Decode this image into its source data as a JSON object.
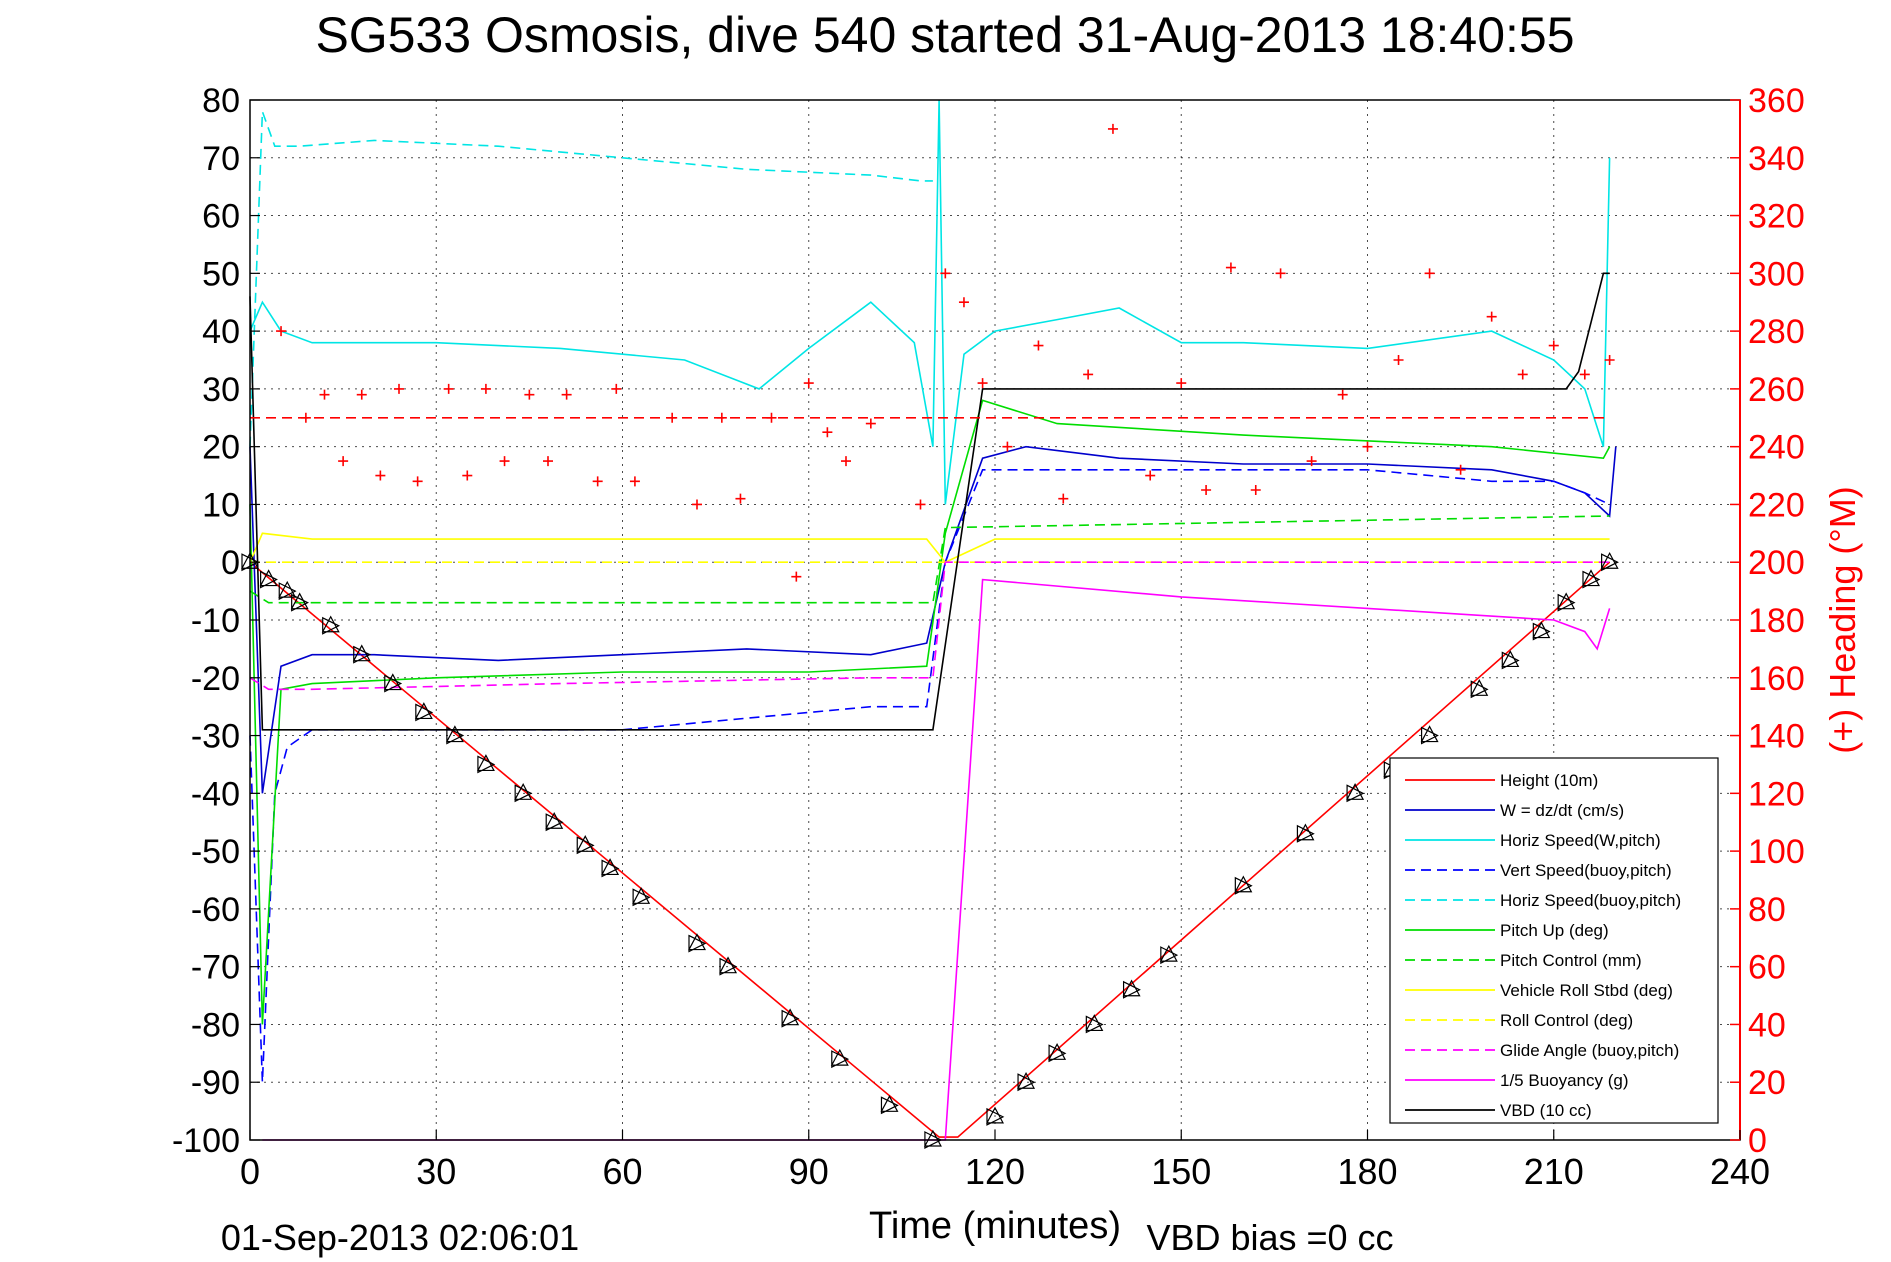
{
  "chart_data": {
    "type": "line",
    "title": "SG533 Osmosis, dive 540 started 31-Aug-2013 18:40:55",
    "xlabel": "Time (minutes)",
    "ylabel_right": "(+) Heading (°M)",
    "footer_left": "01-Sep-2013 02:06:01",
    "footer_right": "VBD bias =0 cc",
    "xlim": [
      0,
      240
    ],
    "ylim": [
      -100,
      80
    ],
    "y2lim": [
      0,
      360
    ],
    "x_ticks": [
      "0",
      "30",
      "60",
      "90",
      "120",
      "150",
      "180",
      "210",
      "240"
    ],
    "y_ticks": [
      "80",
      "70",
      "60",
      "50",
      "40",
      "30",
      "20",
      "10",
      "0",
      "-10",
      "-20",
      "-30",
      "-40",
      "-50",
      "-60",
      "-70",
      "-80",
      "-90",
      "-100"
    ],
    "y2_ticks": [
      "360",
      "340",
      "320",
      "300",
      "280",
      "260",
      "240",
      "220",
      "200",
      "180",
      "160",
      "140",
      "120",
      "100",
      "80",
      "60",
      "40",
      "20",
      "0"
    ],
    "grid": true,
    "legend_position": "bottom-right",
    "legend": [
      {
        "label": "Height (10m)",
        "color": "#ff0000",
        "dash": "solid"
      },
      {
        "label": "W = dz/dt (cm/s)",
        "color": "#0000cc",
        "dash": "solid"
      },
      {
        "label": "Horiz Speed(W,pitch)",
        "color": "#00e5e5",
        "dash": "solid"
      },
      {
        "label": "Vert Speed(buoy,pitch)",
        "color": "#0000ff",
        "dash": "dashed"
      },
      {
        "label": "Horiz Speed(buoy,pitch)",
        "color": "#00e5e5",
        "dash": "dashed"
      },
      {
        "label": "Pitch Up (deg)",
        "color": "#00dd00",
        "dash": "solid"
      },
      {
        "label": "Pitch Control (mm)",
        "color": "#00dd00",
        "dash": "dashed"
      },
      {
        "label": "Vehicle Roll Stbd (deg)",
        "color": "#ffff00",
        "dash": "solid"
      },
      {
        "label": "Roll Control (deg)",
        "color": "#ffff00",
        "dash": "dashed"
      },
      {
        "label": "Glide Angle (buoy,pitch)",
        "color": "#ff00ff",
        "dash": "dashed"
      },
      {
        "label": "1/5 Buoyancy (g)",
        "color": "#ff00ff",
        "dash": "solid"
      },
      {
        "label": "VBD (10 cc)",
        "color": "#000000",
        "dash": "solid"
      }
    ],
    "series": [
      {
        "name": "Height (10m)",
        "axis": "left",
        "color": "#ff0000",
        "dash": "solid",
        "x": [
          0,
          111,
          114,
          219
        ],
        "y": [
          0,
          -99.5,
          -99.5,
          0
        ]
      },
      {
        "name": "W = dz/dt (cm/s)",
        "axis": "left",
        "color": "#0000cc",
        "dash": "solid",
        "x": [
          0,
          2,
          5,
          10,
          20,
          40,
          60,
          80,
          100,
          109,
          112,
          118,
          125,
          140,
          160,
          180,
          200,
          210,
          215,
          219,
          220
        ],
        "y": [
          20,
          -40,
          -18,
          -16,
          -16,
          -17,
          -16,
          -15,
          -16,
          -14,
          0,
          18,
          20,
          18,
          17,
          17,
          16,
          14,
          12,
          8,
          20
        ]
      },
      {
        "name": "Horiz Speed(W,pitch)",
        "axis": "left",
        "color": "#00e5e5",
        "dash": "solid",
        "x": [
          0,
          2,
          5,
          10,
          30,
          50,
          70,
          82,
          90,
          100,
          107,
          110,
          111,
          112,
          115,
          120,
          130,
          140,
          150,
          160,
          180,
          200,
          210,
          215,
          218,
          219
        ],
        "y": [
          40,
          45,
          40,
          38,
          38,
          37,
          35,
          30,
          37,
          45,
          38,
          20,
          80,
          10,
          36,
          40,
          42,
          44,
          38,
          38,
          37,
          40,
          35,
          30,
          20,
          70
        ]
      },
      {
        "name": "Vert Speed(buoy,pitch)",
        "axis": "left",
        "color": "#0000ff",
        "dash": "dashed",
        "x": [
          0,
          2,
          4,
          6,
          10,
          20,
          40,
          60,
          80,
          100,
          109,
          112,
          118,
          140,
          160,
          180,
          200,
          210,
          215,
          219
        ],
        "y": [
          -30,
          -90,
          -40,
          -32,
          -29,
          -29,
          -29,
          -29,
          -27,
          -25,
          -25,
          0,
          16,
          16,
          16,
          16,
          14,
          14,
          12,
          10
        ]
      },
      {
        "name": "Horiz Speed(buoy,pitch)",
        "axis": "left",
        "color": "#00e5e5",
        "dash": "dashed",
        "x": [
          0,
          2,
          4,
          8,
          20,
          40,
          60,
          80,
          100,
          108,
          110
        ],
        "y": [
          20,
          78,
          72,
          72,
          73,
          72,
          70,
          68,
          67,
          66,
          66
        ]
      },
      {
        "name": "Pitch Up (deg)",
        "axis": "left",
        "color": "#00dd00",
        "dash": "solid",
        "x": [
          0,
          2,
          5,
          10,
          30,
          60,
          90,
          109,
          112,
          118,
          130,
          160,
          200,
          218,
          219
        ],
        "y": [
          10,
          -80,
          -22,
          -21,
          -20,
          -19,
          -19,
          -18,
          5,
          28,
          24,
          22,
          20,
          18,
          20
        ]
      },
      {
        "name": "Pitch Control (mm)",
        "axis": "left",
        "color": "#00dd00",
        "dash": "dashed",
        "x": [
          0,
          3,
          110,
          112,
          219
        ],
        "y": [
          -5,
          -7,
          -7,
          6,
          8
        ]
      },
      {
        "name": "Vehicle Roll Stbd (deg)",
        "axis": "left",
        "color": "#ffff00",
        "dash": "solid",
        "x": [
          0,
          2,
          10,
          50,
          90,
          109,
          112,
          120,
          160,
          200,
          219
        ],
        "y": [
          0,
          5,
          4,
          4,
          4,
          4,
          0,
          4,
          4,
          4,
          4
        ]
      },
      {
        "name": "Roll Control (deg)",
        "axis": "left",
        "color": "#ffff00",
        "dash": "dashed",
        "x": [
          0,
          219
        ],
        "y": [
          0,
          0
        ]
      },
      {
        "name": "Glide Angle (buoy,pitch)",
        "axis": "left",
        "color": "#ff00ff",
        "dash": "dashed",
        "x": [
          0,
          3,
          10,
          50,
          100,
          110,
          112,
          219
        ],
        "y": [
          -20,
          -22,
          -22,
          -21,
          -20,
          -20,
          0,
          0
        ]
      },
      {
        "name": "1/5 Buoyancy (g)",
        "axis": "left",
        "color": "#ff00ff",
        "dash": "solid",
        "x": [
          2,
          112,
          118,
          150,
          180,
          210,
          215,
          217,
          219
        ],
        "y": [
          -100,
          -100,
          -3,
          -6,
          -8,
          -10,
          -12,
          -15,
          -8
        ]
      },
      {
        "name": "VBD (10 cc)",
        "axis": "left",
        "color": "#000000",
        "dash": "solid",
        "x": [
          0,
          2,
          110,
          118,
          212,
          214,
          218,
          219
        ],
        "y": [
          46,
          -29,
          -29,
          30,
          30,
          33,
          50,
          50
        ]
      },
      {
        "name": "Heading",
        "axis": "right",
        "color": "#ff0000",
        "marker": "+",
        "x": [
          5,
          9,
          12,
          15,
          18,
          21,
          24,
          27,
          32,
          35,
          38,
          41,
          45,
          48,
          51,
          56,
          59,
          62,
          68,
          72,
          76,
          79,
          84,
          88,
          90,
          93,
          96,
          100,
          108,
          112,
          115,
          118,
          122,
          127,
          131,
          135,
          139,
          145,
          150,
          154,
          158,
          162,
          166,
          171,
          176,
          180,
          185,
          190,
          195,
          200,
          205,
          210,
          215,
          219
        ],
        "y": [
          280,
          250,
          258,
          235,
          258,
          230,
          260,
          228,
          260,
          230,
          260,
          235,
          258,
          235,
          258,
          228,
          260,
          228,
          250,
          220,
          250,
          222,
          250,
          195,
          262,
          245,
          235,
          248,
          220,
          300,
          290,
          262,
          240,
          275,
          222,
          265,
          350,
          230,
          262,
          225,
          302,
          225,
          300,
          235,
          258,
          240,
          270,
          300,
          232,
          285,
          265,
          275,
          265,
          270
        ]
      },
      {
        "name": "Heading (dashed)",
        "axis": "right",
        "color": "#ff0000",
        "dash": "dashed",
        "x": [
          0,
          219
        ],
        "y": [
          250,
          250
        ]
      },
      {
        "name": "Dive markers",
        "axis": "left",
        "color": "#000000",
        "marker": "triangle",
        "x": [
          0,
          3,
          6,
          8,
          13,
          18,
          23,
          28,
          33,
          38,
          44,
          49,
          54,
          58,
          63,
          72,
          77,
          87,
          95,
          103,
          110,
          120,
          125,
          130,
          136,
          142,
          148,
          160,
          170,
          178,
          184,
          190,
          198,
          203,
          208,
          212,
          216,
          219
        ],
        "y": [
          0,
          -3,
          -5,
          -7,
          -11,
          -16,
          -21,
          -26,
          -30,
          -35,
          -40,
          -45,
          -49,
          -53,
          -58,
          -66,
          -70,
          -79,
          -86,
          -94,
          -100,
          -96,
          -90,
          -85,
          -80,
          -74,
          -68,
          -56,
          -47,
          -40,
          -36,
          -30,
          -22,
          -17,
          -12,
          -7,
          -3,
          0
        ]
      }
    ]
  }
}
